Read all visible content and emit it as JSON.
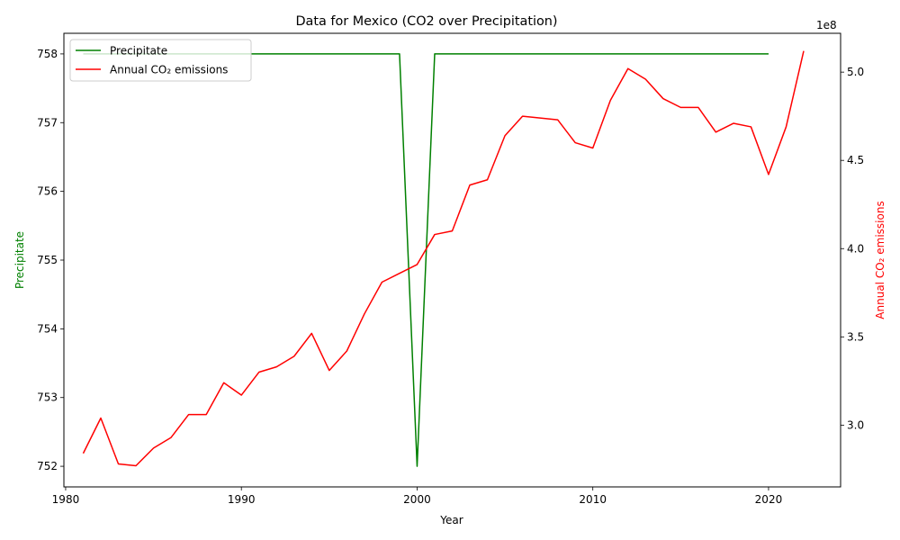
{
  "chart_data": {
    "type": "line",
    "title": "Data for Mexico (CO2 over Precipitation)",
    "xlabel": "Year",
    "ylabel_left": "Precipitate",
    "ylabel_right": "Annual CO₂ emissions",
    "right_axis_multiplier": "1e8",
    "xlim": [
      1979.9,
      2024.1
    ],
    "ylim_left": [
      751.7,
      758.3
    ],
    "ylim_right": [
      265000000,
      522000000
    ],
    "x_ticks": [
      1980,
      1990,
      2000,
      2010,
      2020
    ],
    "y_ticks_left": [
      752,
      753,
      754,
      755,
      756,
      757,
      758
    ],
    "y_ticks_right": [
      3.0,
      3.5,
      4.0,
      4.5,
      5.0
    ],
    "grid": false,
    "legend_position": "upper-left",
    "series": [
      {
        "name": "Precipitate",
        "axis": "left",
        "color": "#008000",
        "x": [
          1981,
          1982,
          1983,
          1984,
          1985,
          1986,
          1987,
          1988,
          1989,
          1990,
          1991,
          1992,
          1993,
          1994,
          1995,
          1996,
          1997,
          1998,
          1999,
          2000,
          2001,
          2002,
          2003,
          2004,
          2005,
          2006,
          2007,
          2008,
          2009,
          2010,
          2011,
          2012,
          2013,
          2014,
          2015,
          2016,
          2017,
          2018,
          2019,
          2020
        ],
        "values": [
          758,
          758,
          758,
          758,
          758,
          758,
          758,
          758,
          758,
          758,
          758,
          758,
          758,
          758,
          758,
          758,
          758,
          758,
          758,
          752,
          758,
          758,
          758,
          758,
          758,
          758,
          758,
          758,
          758,
          758,
          758,
          758,
          758,
          758,
          758,
          758,
          758,
          758,
          758,
          758
        ]
      },
      {
        "name": "Annual CO₂ emissions",
        "axis": "right",
        "color": "#ff0000",
        "x": [
          1981,
          1982,
          1983,
          1984,
          1985,
          1986,
          1987,
          1988,
          1989,
          1990,
          1991,
          1992,
          1993,
          1994,
          1995,
          1996,
          1997,
          1998,
          1999,
          2000,
          2001,
          2002,
          2003,
          2004,
          2005,
          2006,
          2007,
          2008,
          2009,
          2010,
          2011,
          2012,
          2013,
          2014,
          2015,
          2016,
          2017,
          2018,
          2019,
          2020,
          2021,
          2022
        ],
        "values": [
          284000000,
          304000000,
          278000000,
          277000000,
          287000000,
          293000000,
          306000000,
          306000000,
          324000000,
          317000000,
          330000000,
          333000000,
          339000000,
          352000000,
          331000000,
          342000000,
          363000000,
          381000000,
          386000000,
          391000000,
          408000000,
          410000000,
          436000000,
          439000000,
          464000000,
          475000000,
          474000000,
          473000000,
          460000000,
          457000000,
          484000000,
          502000000,
          496000000,
          485000000,
          480000000,
          480000000,
          466000000,
          471000000,
          469000000,
          442000000,
          469000000,
          512000000
        ]
      }
    ]
  }
}
